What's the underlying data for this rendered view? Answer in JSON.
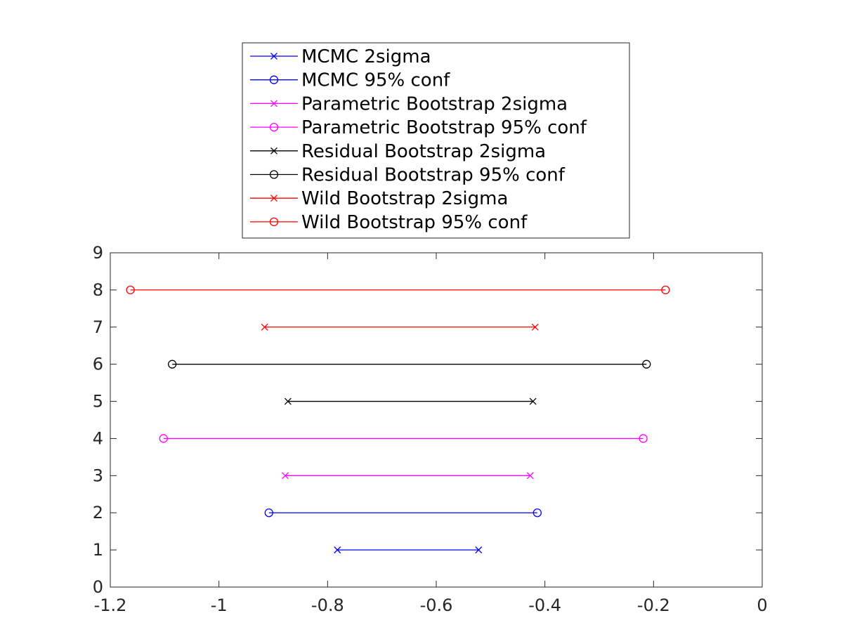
{
  "chart_data": {
    "type": "line",
    "title": "",
    "xlabel": "",
    "ylabel": "",
    "xlim": [
      -1.2,
      0
    ],
    "ylim": [
      0,
      9
    ],
    "xticks": [
      -1.2,
      -1,
      -0.8,
      -0.6,
      -0.4,
      -0.2,
      0
    ],
    "xtick_labels": [
      "-1.2",
      "-1",
      "-0.8",
      "-0.6",
      "-0.4",
      "-0.2",
      "0"
    ],
    "yticks": [
      0,
      1,
      2,
      3,
      4,
      5,
      6,
      7,
      8,
      9
    ],
    "ytick_labels": [
      "0",
      "1",
      "2",
      "3",
      "4",
      "5",
      "6",
      "7",
      "8",
      "9"
    ],
    "grid": false,
    "legend_position": "top-outside",
    "series": [
      {
        "name": "MCMC 2sigma",
        "color": "#0000ff",
        "marker": "x",
        "x": [
          -0.782,
          -0.522
        ],
        "y": [
          1,
          1
        ]
      },
      {
        "name": "MCMC 95% conf",
        "color": "#0000ff",
        "marker": "o",
        "x": [
          -0.908,
          -0.414
        ],
        "y": [
          2,
          2
        ]
      },
      {
        "name": "Parametric Bootstrap 2sigma",
        "color": "#ff00ff",
        "marker": "x",
        "x": [
          -0.878,
          -0.427
        ],
        "y": [
          3,
          3
        ]
      },
      {
        "name": "Parametric Bootstrap 95% conf",
        "color": "#ff00ff",
        "marker": "o",
        "x": [
          -1.102,
          -0.219
        ],
        "y": [
          4,
          4
        ]
      },
      {
        "name": "Residual Bootstrap 2sigma",
        "color": "#000000",
        "marker": "x",
        "x": [
          -0.873,
          -0.422
        ],
        "y": [
          5,
          5
        ]
      },
      {
        "name": "Residual Bootstrap 95% conf",
        "color": "#000000",
        "marker": "o",
        "x": [
          -1.086,
          -0.213
        ],
        "y": [
          6,
          6
        ]
      },
      {
        "name": "Wild Bootstrap 2sigma",
        "color": "#ff0000",
        "marker": "x",
        "x": [
          -0.916,
          -0.418
        ],
        "y": [
          7,
          7
        ]
      },
      {
        "name": "Wild Bootstrap 95% conf",
        "color": "#ff0000",
        "marker": "o",
        "x": [
          -1.163,
          -0.178
        ],
        "y": [
          8,
          8
        ]
      }
    ]
  }
}
